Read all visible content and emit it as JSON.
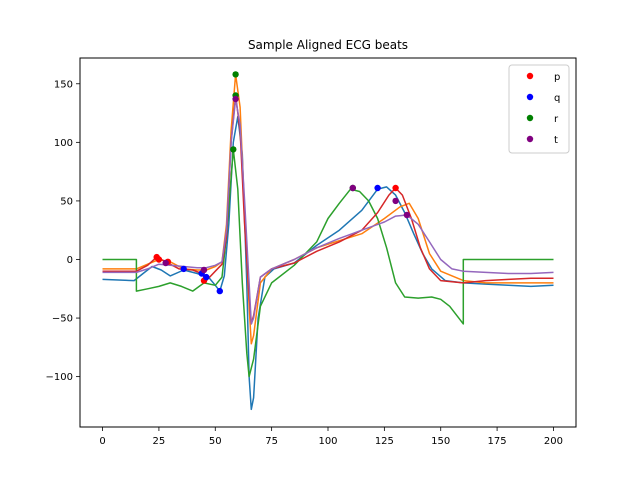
{
  "chart_data": {
    "type": "line",
    "title": "Sample Aligned ECG beats",
    "xlabel": "",
    "ylabel": "",
    "xlim": [
      -10,
      210
    ],
    "ylim": [
      -143,
      172
    ],
    "xticks": [
      0,
      25,
      50,
      75,
      100,
      125,
      150,
      175,
      200
    ],
    "yticks": [
      -100,
      -50,
      0,
      50,
      100,
      150
    ],
    "grid": false,
    "legend_position": "top-right",
    "series": [
      {
        "color": "#1f77b4",
        "points": [
          [
            0,
            -17
          ],
          [
            14,
            -18
          ],
          [
            18,
            -12
          ],
          [
            22,
            -6
          ],
          [
            26,
            -9
          ],
          [
            30,
            -14
          ],
          [
            36,
            -9
          ],
          [
            42,
            -12
          ],
          [
            47,
            -15
          ],
          [
            50,
            -22
          ],
          [
            52,
            -27
          ],
          [
            54,
            -14
          ],
          [
            56,
            30
          ],
          [
            58,
            100
          ],
          [
            60,
            122
          ],
          [
            62,
            90
          ],
          [
            64,
            -20
          ],
          [
            65,
            -100
          ],
          [
            66,
            -128
          ],
          [
            67,
            -118
          ],
          [
            69,
            -50
          ],
          [
            72,
            -15
          ],
          [
            76,
            -8
          ],
          [
            85,
            -3
          ],
          [
            95,
            12
          ],
          [
            105,
            25
          ],
          [
            115,
            42
          ],
          [
            122,
            60
          ],
          [
            126,
            62
          ],
          [
            130,
            55
          ],
          [
            134,
            40
          ],
          [
            138,
            22
          ],
          [
            142,
            5
          ],
          [
            146,
            -8
          ],
          [
            152,
            -18
          ],
          [
            160,
            -20
          ],
          [
            170,
            -21
          ],
          [
            180,
            -22
          ],
          [
            190,
            -23
          ],
          [
            200,
            -22
          ]
        ]
      },
      {
        "color": "#ff7f0e",
        "points": [
          [
            0,
            -8
          ],
          [
            15,
            -8
          ],
          [
            20,
            -4
          ],
          [
            25,
            0
          ],
          [
            30,
            -2
          ],
          [
            36,
            -8
          ],
          [
            42,
            -9
          ],
          [
            46,
            -9
          ],
          [
            50,
            -6
          ],
          [
            53,
            -2
          ],
          [
            55,
            30
          ],
          [
            57,
            110
          ],
          [
            59,
            158
          ],
          [
            61,
            130
          ],
          [
            63,
            40
          ],
          [
            65,
            -40
          ],
          [
            66,
            -72
          ],
          [
            67,
            -65
          ],
          [
            70,
            -20
          ],
          [
            75,
            -8
          ],
          [
            85,
            0
          ],
          [
            95,
            10
          ],
          [
            105,
            16
          ],
          [
            115,
            22
          ],
          [
            125,
            35
          ],
          [
            132,
            45
          ],
          [
            136,
            48
          ],
          [
            140,
            35
          ],
          [
            145,
            5
          ],
          [
            150,
            -10
          ],
          [
            160,
            -18
          ],
          [
            170,
            -20
          ],
          [
            180,
            -20
          ],
          [
            190,
            -20
          ],
          [
            200,
            -20
          ]
        ]
      },
      {
        "color": "#2ca02c",
        "points": [
          [
            0,
            0
          ],
          [
            15,
            0
          ],
          [
            15,
            -27
          ],
          [
            20,
            -25
          ],
          [
            25,
            -23
          ],
          [
            30,
            -20
          ],
          [
            35,
            -23
          ],
          [
            40,
            -27
          ],
          [
            45,
            -20
          ],
          [
            50,
            -22
          ],
          [
            53,
            -15
          ],
          [
            55,
            20
          ],
          [
            57,
            70
          ],
          [
            58,
            94
          ],
          [
            60,
            60
          ],
          [
            62,
            -20
          ],
          [
            64,
            -80
          ],
          [
            65,
            -100
          ],
          [
            67,
            -85
          ],
          [
            70,
            -40
          ],
          [
            75,
            -20
          ],
          [
            85,
            -5
          ],
          [
            95,
            15
          ],
          [
            100,
            35
          ],
          [
            105,
            48
          ],
          [
            110,
            60
          ],
          [
            114,
            58
          ],
          [
            118,
            50
          ],
          [
            122,
            35
          ],
          [
            126,
            10
          ],
          [
            130,
            -20
          ],
          [
            134,
            -32
          ],
          [
            140,
            -33
          ],
          [
            146,
            -32
          ],
          [
            150,
            -34
          ],
          [
            154,
            -40
          ],
          [
            158,
            -50
          ],
          [
            160,
            -55
          ],
          [
            160,
            0
          ],
          [
            170,
            0
          ],
          [
            180,
            0
          ],
          [
            190,
            0
          ],
          [
            200,
            0
          ]
        ]
      },
      {
        "color": "#d62728",
        "points": [
          [
            0,
            -10
          ],
          [
            15,
            -10
          ],
          [
            20,
            -5
          ],
          [
            24,
            2
          ],
          [
            28,
            -2
          ],
          [
            34,
            -8
          ],
          [
            40,
            -9
          ],
          [
            44,
            -12
          ],
          [
            46,
            -18
          ],
          [
            50,
            -10
          ],
          [
            53,
            -4
          ],
          [
            55,
            20
          ],
          [
            57,
            100
          ],
          [
            59,
            140
          ],
          [
            61,
            110
          ],
          [
            63,
            30
          ],
          [
            65,
            -30
          ],
          [
            66,
            -55
          ],
          [
            67,
            -48
          ],
          [
            70,
            -15
          ],
          [
            75,
            -8
          ],
          [
            85,
            -3
          ],
          [
            95,
            7
          ],
          [
            105,
            15
          ],
          [
            115,
            25
          ],
          [
            122,
            40
          ],
          [
            127,
            55
          ],
          [
            130,
            61
          ],
          [
            133,
            55
          ],
          [
            137,
            35
          ],
          [
            141,
            10
          ],
          [
            145,
            -8
          ],
          [
            150,
            -18
          ],
          [
            160,
            -20
          ],
          [
            170,
            -18
          ],
          [
            180,
            -17
          ],
          [
            190,
            -16
          ],
          [
            200,
            -16
          ]
        ]
      },
      {
        "color": "#9467bd",
        "points": [
          [
            0,
            -11
          ],
          [
            15,
            -11
          ],
          [
            20,
            -8
          ],
          [
            25,
            -4
          ],
          [
            30,
            -5
          ],
          [
            36,
            -6
          ],
          [
            42,
            -7
          ],
          [
            46,
            -7
          ],
          [
            50,
            -5
          ],
          [
            53,
            -2
          ],
          [
            55,
            25
          ],
          [
            57,
            100
          ],
          [
            59,
            137
          ],
          [
            61,
            115
          ],
          [
            63,
            50
          ],
          [
            65,
            -20
          ],
          [
            66,
            -55
          ],
          [
            67,
            -50
          ],
          [
            70,
            -15
          ],
          [
            75,
            -8
          ],
          [
            85,
            0
          ],
          [
            95,
            10
          ],
          [
            105,
            18
          ],
          [
            115,
            25
          ],
          [
            125,
            32
          ],
          [
            130,
            37
          ],
          [
            135,
            38
          ],
          [
            140,
            30
          ],
          [
            145,
            15
          ],
          [
            150,
            0
          ],
          [
            155,
            -8
          ],
          [
            160,
            -10
          ],
          [
            170,
            -11
          ],
          [
            180,
            -12
          ],
          [
            190,
            -12
          ],
          [
            200,
            -11
          ]
        ]
      }
    ],
    "markers": {
      "p": {
        "color": "#ff0000",
        "points": [
          [
            24,
            2
          ],
          [
            25,
            0
          ],
          [
            29,
            -2
          ],
          [
            45,
            -18
          ],
          [
            130,
            61
          ]
        ]
      },
      "q": {
        "color": "#0000ff",
        "points": [
          [
            36,
            -8
          ],
          [
            44,
            -12
          ],
          [
            46,
            -15
          ],
          [
            52,
            -27
          ],
          [
            122,
            61
          ]
        ]
      },
      "r": {
        "color": "#008000",
        "points": [
          [
            58,
            94
          ],
          [
            59,
            158
          ],
          [
            59,
            140
          ],
          [
            111,
            61
          ]
        ]
      },
      "t": {
        "color": "#800080",
        "points": [
          [
            28,
            -3
          ],
          [
            45,
            -9
          ],
          [
            59,
            137
          ],
          [
            111,
            61
          ],
          [
            130,
            50
          ],
          [
            135,
            38
          ]
        ]
      }
    },
    "legend": [
      {
        "label": "p",
        "color": "#ff0000"
      },
      {
        "label": "q",
        "color": "#0000ff"
      },
      {
        "label": "r",
        "color": "#008000"
      },
      {
        "label": "t",
        "color": "#800080"
      }
    ]
  }
}
